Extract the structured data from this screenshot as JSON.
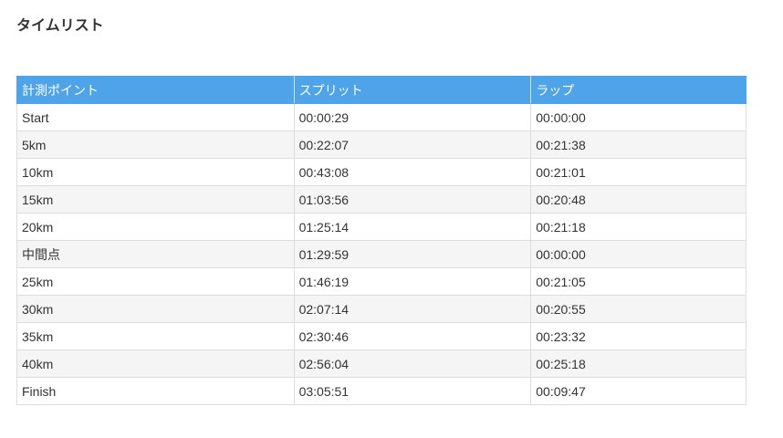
{
  "title": "タイムリスト",
  "table": {
    "headers": [
      "計測ポイント",
      "スプリット",
      "ラップ"
    ],
    "header_color": "#4fa3e8",
    "rows": [
      [
        "Start",
        "00:00:29",
        "00:00:00"
      ],
      [
        "5km",
        "00:22:07",
        "00:21:38"
      ],
      [
        "10km",
        "00:43:08",
        "00:21:01"
      ],
      [
        "15km",
        "01:03:56",
        "00:20:48"
      ],
      [
        "20km",
        "01:25:14",
        "00:21:18"
      ],
      [
        "中間点",
        "01:29:59",
        "00:00:00"
      ],
      [
        "25km",
        "01:46:19",
        "00:21:05"
      ],
      [
        "30km",
        "02:07:14",
        "00:20:55"
      ],
      [
        "35km",
        "02:30:46",
        "00:23:32"
      ],
      [
        "40km",
        "02:56:04",
        "00:25:18"
      ],
      [
        "Finish",
        "03:05:51",
        "00:09:47"
      ]
    ]
  }
}
